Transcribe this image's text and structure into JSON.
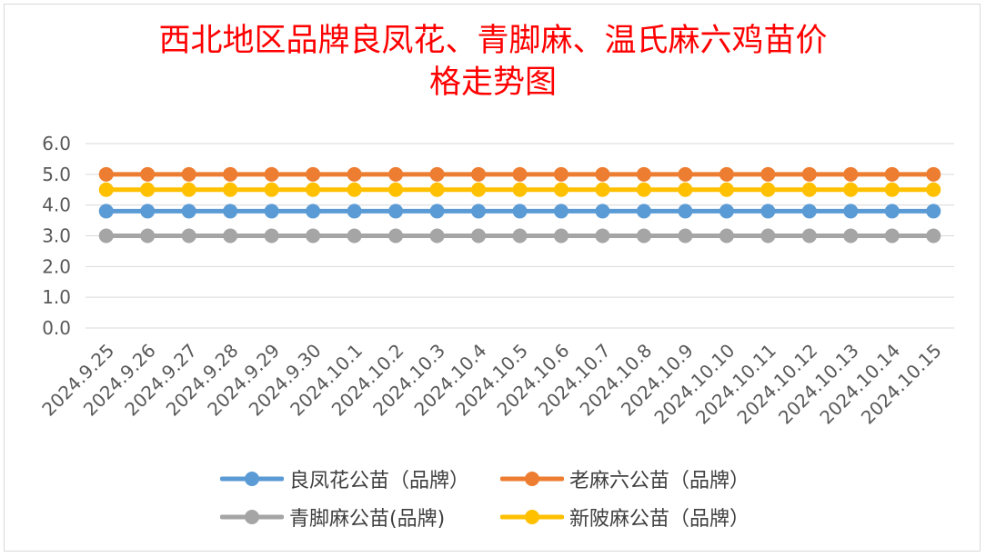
{
  "chart_data": {
    "type": "line",
    "title_lines": [
      "西北地区品牌良凤花、青脚麻、温氏麻六鸡苗价",
      "格走势图"
    ],
    "categories": [
      "2024.9.25",
      "2024.9.26",
      "2024.9.27",
      "2024.9.28",
      "2024.9.29",
      "2024.9.30",
      "2024.10.1",
      "2024.10.2",
      "2024.10.3",
      "2024.10.4",
      "2024.10.5",
      "2024.10.6",
      "2024.10.7",
      "2024.10.8",
      "2024.10.9",
      "2024.10.10",
      "2024.10.11",
      "2024.10.12",
      "2024.10.13",
      "2024.10.14",
      "2024.10.15"
    ],
    "yticks": [
      "0.0",
      "1.0",
      "2.0",
      "3.0",
      "4.0",
      "5.0",
      "6.0"
    ],
    "ylim": [
      0,
      6
    ],
    "grid": true,
    "legend_position": "bottom",
    "series": [
      {
        "name": "良凤花公苗（品牌）",
        "color": "#5b9bd5",
        "values": [
          3.8,
          3.8,
          3.8,
          3.8,
          3.8,
          3.8,
          3.8,
          3.8,
          3.8,
          3.8,
          3.8,
          3.8,
          3.8,
          3.8,
          3.8,
          3.8,
          3.8,
          3.8,
          3.8,
          3.8,
          3.8
        ]
      },
      {
        "name": "老麻六公苗（品牌）",
        "color": "#ed7d31",
        "values": [
          5.0,
          5.0,
          5.0,
          5.0,
          5.0,
          5.0,
          5.0,
          5.0,
          5.0,
          5.0,
          5.0,
          5.0,
          5.0,
          5.0,
          5.0,
          5.0,
          5.0,
          5.0,
          5.0,
          5.0,
          5.0
        ]
      },
      {
        "name": "青脚麻公苗(品牌)",
        "color": "#a5a5a5",
        "values": [
          3.0,
          3.0,
          3.0,
          3.0,
          3.0,
          3.0,
          3.0,
          3.0,
          3.0,
          3.0,
          3.0,
          3.0,
          3.0,
          3.0,
          3.0,
          3.0,
          3.0,
          3.0,
          3.0,
          3.0,
          3.0
        ]
      },
      {
        "name": "新陂麻公苗（品牌）",
        "color": "#ffc000",
        "values": [
          4.5,
          4.5,
          4.5,
          4.5,
          4.5,
          4.5,
          4.5,
          4.5,
          4.5,
          4.5,
          4.5,
          4.5,
          4.5,
          4.5,
          4.5,
          4.5,
          4.5,
          4.5,
          4.5,
          4.5,
          4.5
        ]
      }
    ]
  }
}
